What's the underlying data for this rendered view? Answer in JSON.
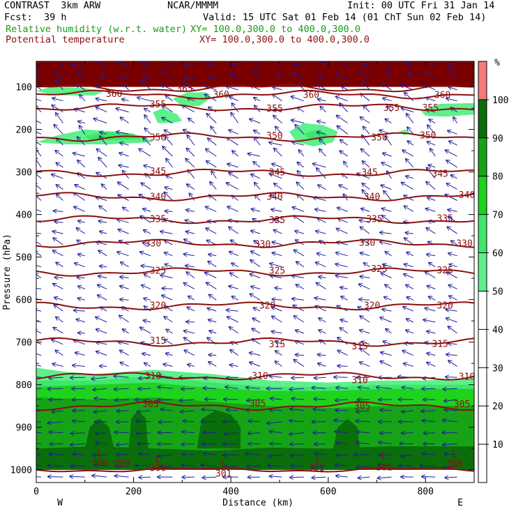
{
  "header": {
    "model": "CONTRAST  3km ARW",
    "org": "NCAR/MMMM",
    "init": "Init: 00 UTC Fri 31 Jan 14",
    "fcst_label": "Fcst:",
    "fcst_value": "39 h",
    "valid": "Valid: 15 UTC Sat 01 Feb 14 (01 ChT Sun 02 Feb 14)",
    "field1": "Relative humidity (w.r.t. water)",
    "field1_xy": "XY= 100.0,300.0 to 400.0,300.0",
    "field2": "Potential temperature",
    "field2_xy": "XY= 100.0,300.0 to 400.0,300.0"
  },
  "colors": {
    "theta": "#8b0f0f",
    "wind": "#1c1c9c",
    "header_green": "#1a9b1a",
    "header_maroon": "#8b0f0f"
  },
  "chart_data": {
    "type": "heatmap",
    "xlabel": "Distance (km)",
    "ylabel": "Pressure (hPa)",
    "xlim": [
      0,
      900
    ],
    "ylim": [
      1030,
      40
    ],
    "x_ticks": [
      0,
      200,
      400,
      600,
      800
    ],
    "y_ticks": [
      100,
      200,
      300,
      400,
      500,
      600,
      700,
      800,
      900,
      1000
    ],
    "x_end_labels": {
      "left": "W",
      "right": "E"
    },
    "colorbar": {
      "unit": "%",
      "levels": [
        10,
        20,
        30,
        40,
        50,
        60,
        70,
        80,
        90,
        100
      ],
      "filled": [
        {
          "from": 50,
          "to": 60,
          "color": "#5ef08a"
        },
        {
          "from": 60,
          "to": 70,
          "color": "#3ee66a"
        },
        {
          "from": 70,
          "to": 80,
          "color": "#1ed21e"
        },
        {
          "from": 80,
          "to": 90,
          "color": "#16a416"
        },
        {
          "from": 90,
          "to": 100,
          "color": "#0a6e0a"
        },
        {
          "from": 100,
          "to": 110,
          "color": "#f47a7a"
        }
      ]
    },
    "theta_contours": [
      {
        "value": 300,
        "pressure": 1000
      },
      {
        "value": 305,
        "pressure": 850
      },
      {
        "value": 310,
        "pressure": 780
      },
      {
        "value": 315,
        "pressure": 700
      },
      {
        "value": 320,
        "pressure": 615
      },
      {
        "value": 325,
        "pressure": 535
      },
      {
        "value": 330,
        "pressure": 468
      },
      {
        "value": 335,
        "pressure": 412
      },
      {
        "value": 340,
        "pressure": 358
      },
      {
        "value": 345,
        "pressure": 302
      },
      {
        "value": 350,
        "pressure": 218
      },
      {
        "value": 355,
        "pressure": 148
      },
      {
        "value": 360,
        "pressure": 118
      },
      {
        "value": 365,
        "pressure": 103
      }
    ],
    "theta_labels": [
      {
        "text": "360",
        "x": 160,
        "p": 115
      },
      {
        "text": "365",
        "x": 305,
        "p": 103
      },
      {
        "text": "360",
        "x": 380,
        "p": 117
      },
      {
        "text": "360",
        "x": 565,
        "p": 118
      },
      {
        "text": "360",
        "x": 835,
        "p": 118
      },
      {
        "text": "355",
        "x": 250,
        "p": 140
      },
      {
        "text": "355",
        "x": 490,
        "p": 150
      },
      {
        "text": "355",
        "x": 730,
        "p": 148
      },
      {
        "text": "355",
        "x": 810,
        "p": 148
      },
      {
        "text": "350",
        "x": 250,
        "p": 218
      },
      {
        "text": "350",
        "x": 490,
        "p": 214
      },
      {
        "text": "350",
        "x": 705,
        "p": 218
      },
      {
        "text": "350",
        "x": 805,
        "p": 213
      },
      {
        "text": "345",
        "x": 250,
        "p": 297
      },
      {
        "text": "345",
        "x": 495,
        "p": 300
      },
      {
        "text": "345",
        "x": 685,
        "p": 300
      },
      {
        "text": "345",
        "x": 830,
        "p": 303
      },
      {
        "text": "340",
        "x": 250,
        "p": 357
      },
      {
        "text": "340",
        "x": 490,
        "p": 357
      },
      {
        "text": "340",
        "x": 690,
        "p": 357
      },
      {
        "text": "340",
        "x": 885,
        "p": 353
      },
      {
        "text": "335",
        "x": 250,
        "p": 410
      },
      {
        "text": "335",
        "x": 495,
        "p": 412
      },
      {
        "text": "335",
        "x": 695,
        "p": 410
      },
      {
        "text": "335",
        "x": 840,
        "p": 408
      },
      {
        "text": "330",
        "x": 240,
        "p": 467
      },
      {
        "text": "330",
        "x": 465,
        "p": 469
      },
      {
        "text": "330",
        "x": 680,
        "p": 465
      },
      {
        "text": "330",
        "x": 880,
        "p": 467
      },
      {
        "text": "325",
        "x": 250,
        "p": 531
      },
      {
        "text": "325",
        "x": 495,
        "p": 531
      },
      {
        "text": "325",
        "x": 705,
        "p": 527
      },
      {
        "text": "325",
        "x": 840,
        "p": 530
      },
      {
        "text": "320",
        "x": 250,
        "p": 613
      },
      {
        "text": "320",
        "x": 475,
        "p": 613
      },
      {
        "text": "320",
        "x": 690,
        "p": 613
      },
      {
        "text": "320",
        "x": 840,
        "p": 613
      },
      {
        "text": "315",
        "x": 250,
        "p": 696
      },
      {
        "text": "315",
        "x": 495,
        "p": 704
      },
      {
        "text": "315",
        "x": 665,
        "p": 709
      },
      {
        "text": "315",
        "x": 830,
        "p": 703
      },
      {
        "text": "310",
        "x": 240,
        "p": 778
      },
      {
        "text": "310",
        "x": 460,
        "p": 778
      },
      {
        "text": "310",
        "x": 665,
        "p": 788
      },
      {
        "text": "310",
        "x": 885,
        "p": 780
      },
      {
        "text": "305",
        "x": 235,
        "p": 845
      },
      {
        "text": "305",
        "x": 455,
        "p": 843
      },
      {
        "text": "305",
        "x": 670,
        "p": 850
      },
      {
        "text": "305",
        "x": 875,
        "p": 845
      },
      {
        "text": "300",
        "x": 130,
        "p": 983
      },
      {
        "text": "299",
        "x": 175,
        "p": 985
      },
      {
        "text": "300",
        "x": 250,
        "p": 995
      },
      {
        "text": "301",
        "x": 385,
        "p": 1008
      },
      {
        "text": "301",
        "x": 575,
        "p": 995
      },
      {
        "text": "301",
        "x": 715,
        "p": 993
      },
      {
        "text": "300",
        "x": 860,
        "p": 985
      }
    ],
    "low_markers": [
      {
        "text": "L",
        "x": 130,
        "p": 960
      },
      {
        "text": "L",
        "x": 250,
        "p": 975
      },
      {
        "text": "L",
        "x": 385,
        "p": 985
      },
      {
        "text": "L",
        "x": 580,
        "p": 975
      },
      {
        "text": "L",
        "x": 715,
        "p": 965
      },
      {
        "text": "L",
        "x": 860,
        "p": 963
      }
    ],
    "rh_regions": [
      {
        "level": 50,
        "poly": [
          [
            0,
            1000
          ],
          [
            0,
            760
          ],
          [
            60,
            770
          ],
          [
            120,
            775
          ],
          [
            240,
            765
          ],
          [
            360,
            775
          ],
          [
            480,
            790
          ],
          [
            600,
            795
          ],
          [
            720,
            790
          ],
          [
            800,
            790
          ],
          [
            900,
            785
          ],
          [
            900,
            1000
          ]
        ]
      },
      {
        "level": 60,
        "poly": [
          [
            0,
            1000
          ],
          [
            0,
            790
          ],
          [
            120,
            790
          ],
          [
            240,
            780
          ],
          [
            360,
            795
          ],
          [
            480,
            805
          ],
          [
            600,
            805
          ],
          [
            720,
            800
          ],
          [
            900,
            800
          ],
          [
            900,
            1000
          ]
        ]
      },
      {
        "level": 70,
        "poly": [
          [
            0,
            1000
          ],
          [
            0,
            805
          ],
          [
            120,
            800
          ],
          [
            240,
            795
          ],
          [
            360,
            808
          ],
          [
            480,
            815
          ],
          [
            600,
            815
          ],
          [
            720,
            810
          ],
          [
            900,
            810
          ],
          [
            900,
            1000
          ]
        ]
      },
      {
        "level": 80,
        "poly": [
          [
            0,
            1000
          ],
          [
            0,
            830
          ],
          [
            120,
            835
          ],
          [
            240,
            830
          ],
          [
            360,
            840
          ],
          [
            480,
            850
          ],
          [
            600,
            855
          ],
          [
            720,
            850
          ],
          [
            900,
            850
          ],
          [
            900,
            1000
          ]
        ]
      },
      {
        "level": 90,
        "poly": [
          [
            0,
            1000
          ],
          [
            0,
            950
          ],
          [
            120,
            945
          ],
          [
            240,
            950
          ],
          [
            360,
            955
          ],
          [
            480,
            948
          ],
          [
            600,
            950
          ],
          [
            720,
            945
          ],
          [
            900,
            945
          ],
          [
            900,
            1000
          ]
        ]
      },
      {
        "level": 90,
        "poly": [
          [
            100,
            950
          ],
          [
            110,
            900
          ],
          [
            130,
            880
          ],
          [
            150,
            900
          ],
          [
            160,
            950
          ]
        ]
      },
      {
        "level": 90,
        "poly": [
          [
            190,
            950
          ],
          [
            195,
            880
          ],
          [
            210,
            860
          ],
          [
            225,
            880
          ],
          [
            230,
            950
          ]
        ]
      },
      {
        "level": 90,
        "poly": [
          [
            330,
            950
          ],
          [
            340,
            880
          ],
          [
            370,
            860
          ],
          [
            400,
            870
          ],
          [
            420,
            900
          ],
          [
            420,
            950
          ]
        ]
      },
      {
        "level": 90,
        "poly": [
          [
            610,
            950
          ],
          [
            620,
            900
          ],
          [
            640,
            880
          ],
          [
            660,
            900
          ],
          [
            665,
            950
          ]
        ]
      },
      {
        "level": 50,
        "poly": [
          [
            0,
            230
          ],
          [
            40,
            215
          ],
          [
            100,
            200
          ],
          [
            160,
            205
          ],
          [
            220,
            215
          ],
          [
            240,
            230
          ],
          [
            150,
            235
          ],
          [
            60,
            235
          ]
        ]
      },
      {
        "level": 60,
        "poly": [
          [
            100,
            215
          ],
          [
            150,
            205
          ],
          [
            200,
            210
          ],
          [
            215,
            222
          ],
          [
            160,
            225
          ],
          [
            110,
            225
          ]
        ]
      },
      {
        "level": 50,
        "poly": [
          [
            0,
            110
          ],
          [
            30,
            100
          ],
          [
            100,
            103
          ],
          [
            140,
            110
          ],
          [
            120,
            120
          ],
          [
            40,
            120
          ]
        ]
      },
      {
        "level": 50,
        "poly": [
          [
            240,
            160
          ],
          [
            260,
            150
          ],
          [
            290,
            165
          ],
          [
            300,
            180
          ],
          [
            280,
            185
          ],
          [
            250,
            185
          ]
        ]
      },
      {
        "level": 50,
        "poly": [
          [
            280,
            128
          ],
          [
            310,
            113
          ],
          [
            350,
            113
          ],
          [
            360,
            125
          ],
          [
            335,
            145
          ],
          [
            300,
            145
          ]
        ]
      },
      {
        "level": 50,
        "poly": [
          [
            520,
            205
          ],
          [
            550,
            185
          ],
          [
            590,
            190
          ],
          [
            620,
            205
          ],
          [
            610,
            230
          ],
          [
            570,
            240
          ],
          [
            535,
            230
          ]
        ]
      },
      {
        "level": 60,
        "poly": [
          [
            550,
            210
          ],
          [
            580,
            200
          ],
          [
            600,
            215
          ],
          [
            585,
            225
          ],
          [
            560,
            222
          ]
        ]
      },
      {
        "level": 50,
        "poly": [
          [
            790,
            155
          ],
          [
            830,
            140
          ],
          [
            900,
            138
          ],
          [
            900,
            165
          ],
          [
            840,
            170
          ],
          [
            800,
            168
          ]
        ]
      },
      {
        "level": 50,
        "poly": [
          [
            745,
            205
          ],
          [
            760,
            200
          ],
          [
            770,
            210
          ],
          [
            755,
            213
          ]
        ]
      }
    ],
    "rh_top_band": {
      "level": 100,
      "from_p": 40,
      "to_p": 100
    },
    "wind_barbs": {
      "dx_km": 45,
      "dp_hpa": 26,
      "note": "low-level easterlies, upper northeasterlies"
    }
  }
}
